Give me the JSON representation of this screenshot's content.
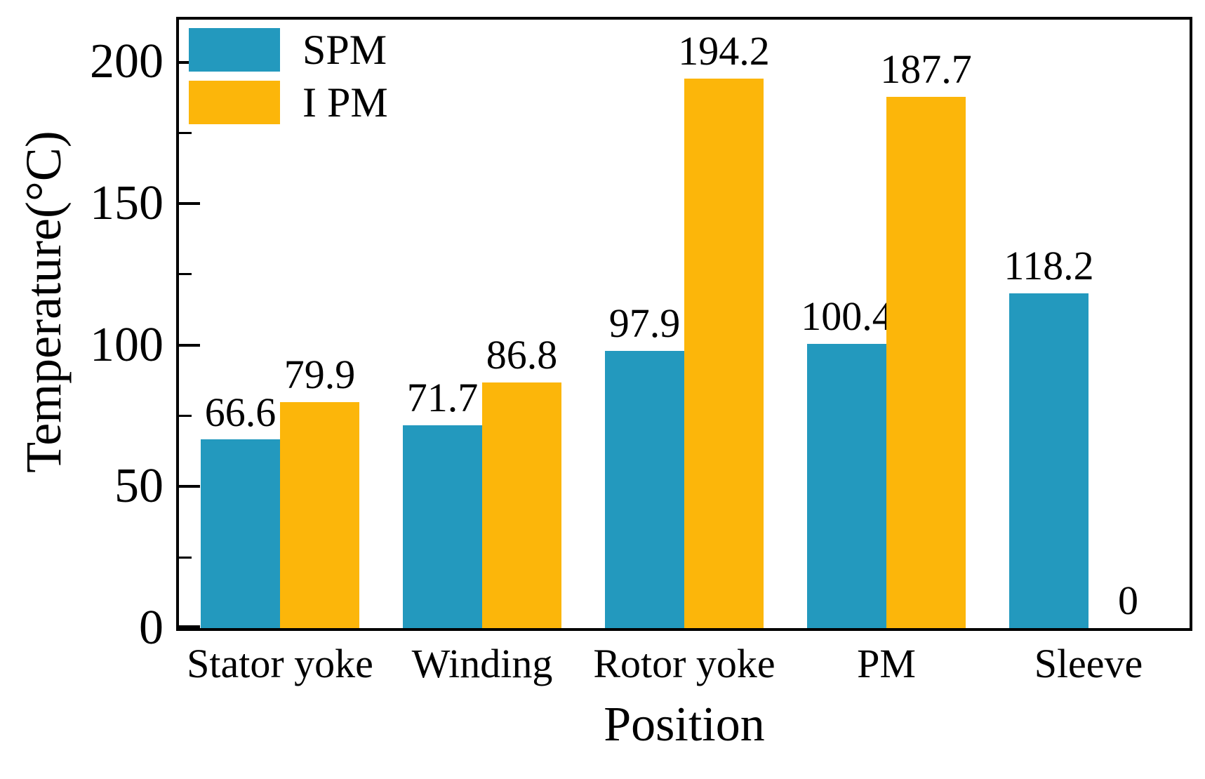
{
  "figure": {
    "background_color": "#ffffff",
    "axis_color": "#000000",
    "text_color": "#000000"
  },
  "chart_data": {
    "type": "bar",
    "title": "",
    "xlabel": "Position",
    "ylabel": "Temperature(°C)",
    "categories": [
      "Stator yoke",
      "Winding",
      "Rotor yoke",
      "PM",
      "Sleeve"
    ],
    "series": [
      {
        "name": "SPM",
        "color": "#2399BE",
        "values": [
          66.6,
          71.7,
          97.9,
          100.4,
          118.2
        ],
        "value_labels": [
          "66.6",
          "71.7",
          "97.9",
          "100.4",
          "118.2"
        ]
      },
      {
        "name": "I PM",
        "color": "#FCB60A",
        "values": [
          79.9,
          86.8,
          194.2,
          187.7,
          0
        ],
        "value_labels": [
          "79.9",
          "86.8",
          "194.2",
          "187.7",
          "0"
        ]
      }
    ],
    "ylim": [
      0,
      215
    ],
    "yticks": [
      0,
      50,
      100,
      150,
      200
    ],
    "minor_yticks": [
      25,
      75,
      125,
      175
    ],
    "grid": false,
    "legend_position": "top-left",
    "legend_entries": [
      "SPM",
      "I PM"
    ]
  }
}
